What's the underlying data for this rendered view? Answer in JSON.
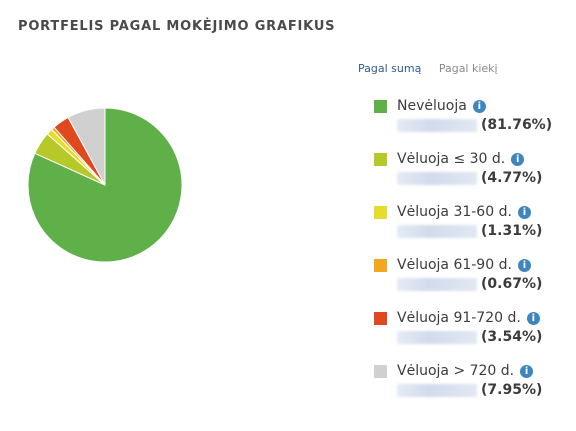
{
  "title": "PORTFELIS PAGAL MOKĖJIMO GRAFIKUS",
  "tabs": [
    {
      "label": "Pagal sumą",
      "active": true
    },
    {
      "label": "Pagal kiekį",
      "active": false
    }
  ],
  "colors": {
    "neveluoja": "#60b04a",
    "v30": "#b6c928",
    "v60": "#e8dc2b",
    "v90": "#f1a81f",
    "v720": "#e0481f",
    "v720plus": "#d0d0d0",
    "info": "#3f86bf"
  },
  "chart_data": {
    "type": "pie",
    "title": "PORTFELIS PAGAL MOKĖJIMO GRAFIKUS",
    "categories": [
      "Nevėluoja",
      "Vėluoja ≤ 30 d.",
      "Vėluoja 31-60 d.",
      "Vėluoja 61-90 d.",
      "Vėluoja 91-720 d.",
      "Vėluoja > 720 d."
    ],
    "values": [
      81.76,
      4.77,
      1.31,
      0.67,
      3.54,
      7.95
    ],
    "percent_labels": [
      "(81.76%)",
      "(4.77%)",
      "(1.31%)",
      "(0.67%)",
      "(3.54%)",
      "(7.95%)"
    ],
    "legend_position": "right"
  },
  "legend": [
    {
      "label": "Nevėluoja",
      "percent": "(81.76%)",
      "color": "#60b04a"
    },
    {
      "label": "Vėluoja ≤ 30 d.",
      "percent": "(4.77%)",
      "color": "#b6c928"
    },
    {
      "label": "Vėluoja 31-60 d.",
      "percent": "(1.31%)",
      "color": "#e8dc2b"
    },
    {
      "label": "Vėluoja 61-90 d.",
      "percent": "(0.67%)",
      "color": "#f1a81f"
    },
    {
      "label": "Vėluoja 91-720 d.",
      "percent": "(3.54%)",
      "color": "#e0481f"
    },
    {
      "label": "Vėluoja > 720 d.",
      "percent": "(7.95%)",
      "color": "#d0d0d0"
    }
  ],
  "info_glyph": "i",
  "icons": {
    "info": "info-icon"
  }
}
